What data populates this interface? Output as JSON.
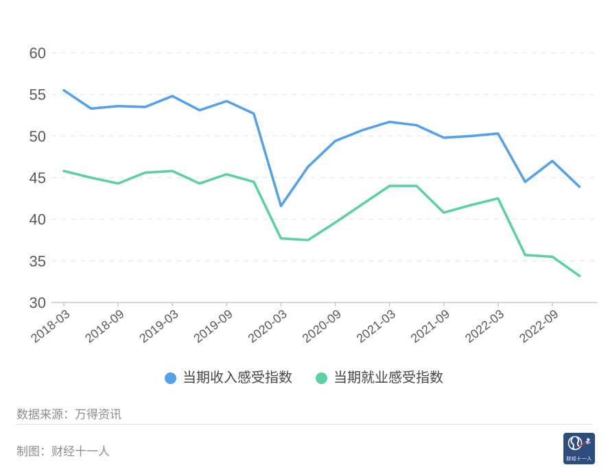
{
  "chart_data": {
    "type": "line",
    "categories": [
      "2018-03",
      "2018-06",
      "2018-09",
      "2018-12",
      "2019-03",
      "2019-06",
      "2019-09",
      "2019-12",
      "2020-03",
      "2020-06",
      "2020-09",
      "2020-12",
      "2021-03",
      "2021-06",
      "2021-09",
      "2021-12",
      "2022-03",
      "2022-06",
      "2022-09",
      "2022-12"
    ],
    "x_tick_labels": [
      "2018-03",
      "2018-09",
      "2019-03",
      "2019-09",
      "2020-03",
      "2020-09",
      "2021-03",
      "2021-09",
      "2022-03",
      "2022-09"
    ],
    "series": [
      {
        "name": "当期收入感受指数",
        "color": "#55a1e8",
        "values": [
          55.5,
          53.3,
          53.6,
          53.5,
          54.8,
          53.1,
          54.2,
          52.7,
          41.6,
          46.3,
          49.4,
          50.7,
          51.7,
          51.3,
          49.8,
          50.0,
          50.3,
          44.5,
          47.0,
          43.9
        ]
      },
      {
        "name": "当期就业感受指数",
        "color": "#5dd0a2",
        "values": [
          45.8,
          45.0,
          44.3,
          45.6,
          45.8,
          44.3,
          45.4,
          44.5,
          37.7,
          37.5,
          39.6,
          41.8,
          44.0,
          44.0,
          40.8,
          41.7,
          42.5,
          35.7,
          35.5,
          33.2
        ]
      }
    ],
    "ylim": [
      30,
      60
    ],
    "y_ticks": [
      30,
      35,
      40,
      45,
      50,
      55,
      60
    ],
    "title": "",
    "xlabel": "",
    "ylabel": "",
    "grid": "horizontal-dashed",
    "legend_position": "bottom-center"
  },
  "footer": {
    "source": "数据来源：万得资讯",
    "credit": "制图：财经十一人",
    "logo_text": "财经十一人"
  },
  "colors": {
    "income_line": "#55a1e8",
    "employment_line": "#5dd0a2",
    "grid": "#e2e2e2",
    "axis": "#c9c9c9",
    "tick_text": "#595959",
    "footer_text": "#8d8d8d",
    "logo_bg": "#2d4d7f"
  }
}
